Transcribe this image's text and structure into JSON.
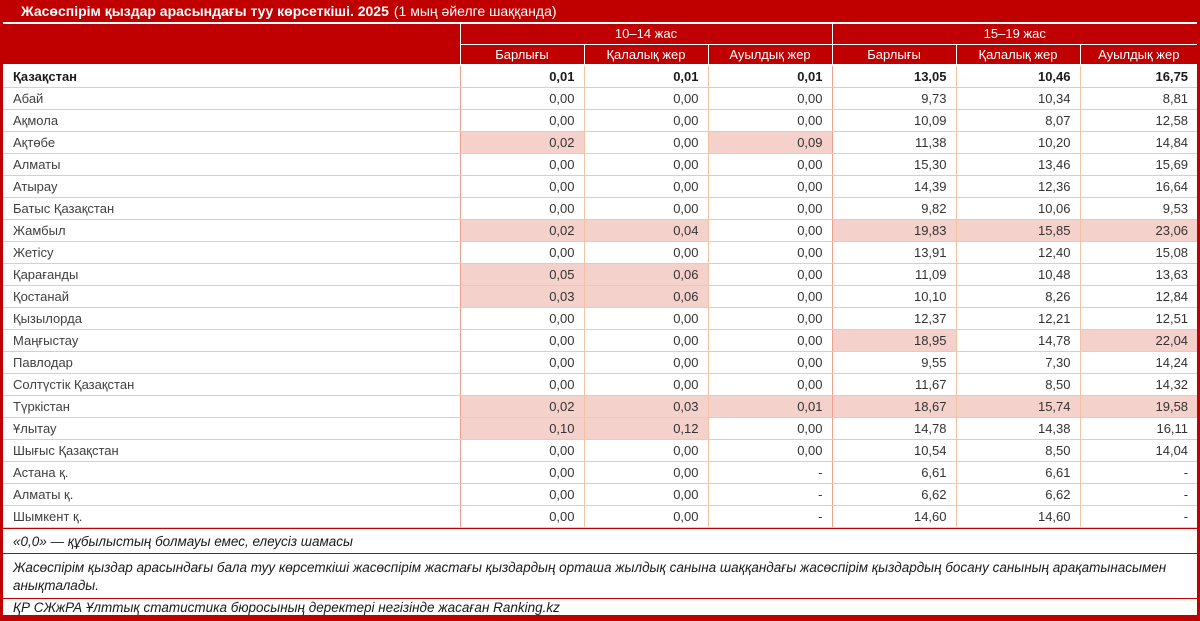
{
  "title": {
    "bold": "Жасөспірім қыздар арасындағы туу көрсеткіші. 2025",
    "normal": "(1 мың әйелге шаққанда)"
  },
  "colors": {
    "dark_red": "#C00000",
    "highlight_pink": "#F5D1CB",
    "row_border_peach": "#F1C9A4",
    "text": "#333333"
  },
  "chart_data": {
    "type": "table",
    "title": "Жасөспірім қыздар арасындағы туу көрсеткіші. 2025 (1 мың әйелге шаққанда)",
    "column_groups": [
      "10–14 жас",
      "15–19 жас"
    ],
    "columns": [
      "Барлығы",
      "Қалалық жер",
      "Ауылдық жер",
      "Барлығы",
      "Қалалық жер",
      "Ауылдық жер"
    ],
    "rows": [
      {
        "region": "Қазақстан",
        "bold": true,
        "values": [
          "0,01",
          "0,01",
          "0,01",
          "13,05",
          "10,46",
          "16,75"
        ],
        "hl": [
          0,
          0,
          0,
          0,
          0,
          0
        ]
      },
      {
        "region": "Абай",
        "values": [
          "0,00",
          "0,00",
          "0,00",
          "9,73",
          "10,34",
          "8,81"
        ],
        "hl": [
          0,
          0,
          0,
          0,
          0,
          0
        ]
      },
      {
        "region": "Ақмола",
        "values": [
          "0,00",
          "0,00",
          "0,00",
          "10,09",
          "8,07",
          "12,58"
        ],
        "hl": [
          0,
          0,
          0,
          0,
          0,
          0
        ]
      },
      {
        "region": "Ақтөбе",
        "values": [
          "0,02",
          "0,00",
          "0,09",
          "11,38",
          "10,20",
          "14,84"
        ],
        "hl": [
          1,
          0,
          1,
          0,
          0,
          0
        ]
      },
      {
        "region": "Алматы",
        "values": [
          "0,00",
          "0,00",
          "0,00",
          "15,30",
          "13,46",
          "15,69"
        ],
        "hl": [
          0,
          0,
          0,
          0,
          0,
          0
        ]
      },
      {
        "region": "Атырау",
        "values": [
          "0,00",
          "0,00",
          "0,00",
          "14,39",
          "12,36",
          "16,64"
        ],
        "hl": [
          0,
          0,
          0,
          0,
          0,
          0
        ]
      },
      {
        "region": "Батыс Қазақстан",
        "values": [
          "0,00",
          "0,00",
          "0,00",
          "9,82",
          "10,06",
          "9,53"
        ],
        "hl": [
          0,
          0,
          0,
          0,
          0,
          0
        ]
      },
      {
        "region": "Жамбыл",
        "values": [
          "0,02",
          "0,04",
          "0,00",
          "19,83",
          "15,85",
          "23,06"
        ],
        "hl": [
          1,
          1,
          0,
          1,
          1,
          1
        ]
      },
      {
        "region": "Жетісу",
        "values": [
          "0,00",
          "0,00",
          "0,00",
          "13,91",
          "12,40",
          "15,08"
        ],
        "hl": [
          0,
          0,
          0,
          0,
          0,
          0
        ]
      },
      {
        "region": "Қарағанды",
        "values": [
          "0,05",
          "0,06",
          "0,00",
          "11,09",
          "10,48",
          "13,63"
        ],
        "hl": [
          1,
          1,
          0,
          0,
          0,
          0
        ]
      },
      {
        "region": "Қостанай",
        "values": [
          "0,03",
          "0,06",
          "0,00",
          "10,10",
          "8,26",
          "12,84"
        ],
        "hl": [
          1,
          1,
          0,
          0,
          0,
          0
        ]
      },
      {
        "region": "Қызылорда",
        "values": [
          "0,00",
          "0,00",
          "0,00",
          "12,37",
          "12,21",
          "12,51"
        ],
        "hl": [
          0,
          0,
          0,
          0,
          0,
          0
        ]
      },
      {
        "region": "Маңғыстау",
        "values": [
          "0,00",
          "0,00",
          "0,00",
          "18,95",
          "14,78",
          "22,04"
        ],
        "hl": [
          0,
          0,
          0,
          1,
          0,
          1
        ]
      },
      {
        "region": "Павлодар",
        "values": [
          "0,00",
          "0,00",
          "0,00",
          "9,55",
          "7,30",
          "14,24"
        ],
        "hl": [
          0,
          0,
          0,
          0,
          0,
          0
        ]
      },
      {
        "region": "Солтүстік Қазақстан",
        "values": [
          "0,00",
          "0,00",
          "0,00",
          "11,67",
          "8,50",
          "14,32"
        ],
        "hl": [
          0,
          0,
          0,
          0,
          0,
          0
        ]
      },
      {
        "region": "Түркістан",
        "values": [
          "0,02",
          "0,03",
          "0,01",
          "18,67",
          "15,74",
          "19,58"
        ],
        "hl": [
          1,
          1,
          1,
          1,
          1,
          1
        ]
      },
      {
        "region": "Ұлытау",
        "values": [
          "0,10",
          "0,12",
          "0,00",
          "14,78",
          "14,38",
          "16,11"
        ],
        "hl": [
          1,
          1,
          0,
          0,
          0,
          0
        ]
      },
      {
        "region": "Шығыс Қазақстан",
        "values": [
          "0,00",
          "0,00",
          "0,00",
          "10,54",
          "8,50",
          "14,04"
        ],
        "hl": [
          0,
          0,
          0,
          0,
          0,
          0
        ]
      },
      {
        "region": "Астана қ.",
        "values": [
          "0,00",
          "0,00",
          "-",
          "6,61",
          "6,61",
          "-"
        ],
        "hl": [
          0,
          0,
          0,
          0,
          0,
          0
        ]
      },
      {
        "region": "Алматы қ.",
        "values": [
          "0,00",
          "0,00",
          "-",
          "6,62",
          "6,62",
          "-"
        ],
        "hl": [
          0,
          0,
          0,
          0,
          0,
          0
        ]
      },
      {
        "region": "Шымкент қ.",
        "values": [
          "0,00",
          "0,00",
          "-",
          "14,60",
          "14,60",
          "-"
        ],
        "hl": [
          0,
          0,
          0,
          0,
          0,
          0
        ]
      }
    ],
    "notes": [
      "«0,0» — құбылыстың болмауы емес, елеусіз шамасы",
      "Жасөспірім қыздар арасындағы бала туу көрсеткіші жасөспірім жастағы қыздардың орташа жылдық санына шаққандағы жасөспірім қыздардың босану санының арақатынасымен анықталады.",
      "ҚР СЖжРА Ұлттық статистика бюросының деректері негізінде жасаған Ranking.kz"
    ]
  }
}
